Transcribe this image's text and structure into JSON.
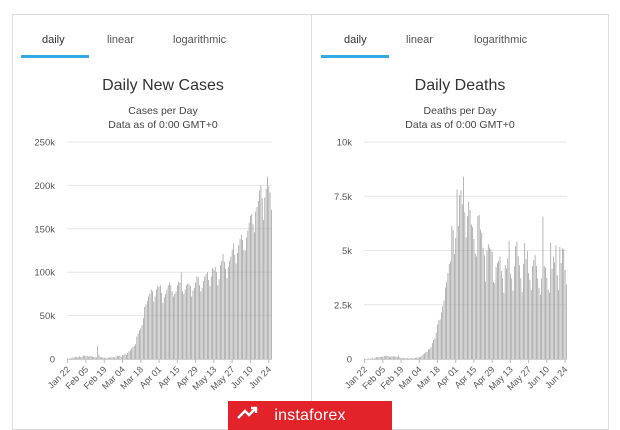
{
  "panels": [
    {
      "tabs": [
        {
          "label": "daily",
          "active": true
        },
        {
          "label": "linear",
          "active": false
        },
        {
          "label": "logarithmic",
          "active": false
        }
      ],
      "chart_data": {
        "type": "bar",
        "title": "Daily New Cases",
        "subtitle_lines": [
          "Cases per Day",
          "Data as of 0:00 GMT+0"
        ],
        "xlabel": "",
        "ylabel": "",
        "ylim": [
          0,
          250000
        ],
        "yticks": [
          0,
          50000,
          100000,
          150000,
          200000,
          250000
        ],
        "ytick_labels": [
          "0",
          "50k",
          "100k",
          "150k",
          "200k",
          "250k"
        ],
        "xtick_labels": [
          "Jan 22",
          "Feb 05",
          "Feb 19",
          "Mar 04",
          "Mar 18",
          "Apr 01",
          "Apr 15",
          "Apr 29",
          "May 13",
          "May 27",
          "Jun 10",
          "Jun 24"
        ],
        "start_date": "Jan 22",
        "grid": true,
        "color": "#9a9a9a",
        "values": [
          600,
          300,
          700,
          800,
          1800,
          1900,
          2100,
          2600,
          2200,
          3000,
          2000,
          2300,
          3900,
          3700,
          3200,
          3800,
          2700,
          3500,
          3100,
          2600,
          2400,
          2000,
          1800,
          15000,
          5100,
          2400,
          2000,
          1900,
          1500,
          1000,
          600,
          1800,
          1300,
          2400,
          1800,
          2300,
          1500,
          2700,
          3900,
          3300,
          3800,
          2300,
          4500,
          4400,
          5400,
          4600,
          7200,
          9000,
          10000,
          12000,
          14000,
          15000,
          17000,
          26000,
          29000,
          33000,
          35000,
          39000,
          47000,
          60000,
          63000,
          67000,
          72000,
          75000,
          80000,
          78000,
          66000,
          72000,
          80000,
          84000,
          83000,
          85000,
          76000,
          65000,
          71000,
          75000,
          80000,
          85000,
          88000,
          85000,
          78000,
          72000,
          75000,
          78000,
          85000,
          89000,
          88000,
          100000,
          78000,
          75000,
          80000,
          85000,
          87000,
          86000,
          84000,
          72000,
          79000,
          82000,
          88000,
          95000,
          94000,
          85000,
          78000,
          82000,
          90000,
          95000,
          98000,
          100000,
          91000,
          84000,
          95000,
          105000,
          103000,
          106000,
          100000,
          85000,
          92000,
          108000,
          113000,
          121000,
          112000,
          104000,
          93000,
          106000,
          113000,
          118000,
          126000,
          133000,
          120000,
          110000,
          122000,
          131000,
          138000,
          143000,
          137000,
          126000,
          125000,
          140000,
          148000,
          157000,
          165000,
          167000,
          155000,
          146000,
          170000,
          175000,
          182000,
          194000,
          200000,
          185000,
          160000,
          186000,
          196000,
          210000,
          199000,
          192000,
          172000
        ]
      }
    },
    {
      "tabs": [
        {
          "label": "daily",
          "active": true
        },
        {
          "label": "linear",
          "active": false
        },
        {
          "label": "logarithmic",
          "active": false
        }
      ],
      "chart_data": {
        "type": "bar",
        "title": "Daily Deaths",
        "subtitle_lines": [
          "Deaths per Day",
          "Data as of 0:00 GMT+0"
        ],
        "xlabel": "",
        "ylabel": "",
        "ylim": [
          0,
          10000
        ],
        "yticks": [
          0,
          2500,
          5000,
          7500,
          10000
        ],
        "ytick_labels": [
          "0",
          "2.5k",
          "5k",
          "7.5k",
          "10k"
        ],
        "xtick_labels": [
          "Jan 22",
          "Feb 05",
          "Feb 19",
          "Mar 04",
          "Mar 18",
          "Apr 01",
          "Apr 15",
          "Apr 29",
          "May 13",
          "May 27",
          "Jun 10",
          "Jun 24"
        ],
        "start_date": "Jan 22",
        "grid": true,
        "color": "#9a9a9a",
        "values": [
          17,
          1,
          8,
          16,
          14,
          26,
          49,
          2,
          66,
          73,
          86,
          89,
          97,
          108,
          97,
          146,
          121,
          143,
          142,
          105,
          98,
          136,
          116,
          118,
          109,
          97,
          150,
          71,
          52,
          29,
          44,
          47,
          35,
          42,
          31,
          38,
          31,
          30,
          41,
          53,
          56,
          79,
          84,
          102,
          162,
          215,
          261,
          316,
          341,
          445,
          452,
          543,
          732,
          873,
          946,
          1210,
          1595,
          1790,
          1820,
          2150,
          2430,
          2700,
          3290,
          3550,
          3960,
          4380,
          4500,
          6140,
          5940,
          4840,
          5570,
          7810,
          6130,
          7550,
          7770,
          7130,
          8400,
          6760,
          5610,
          6580,
          7250,
          6860,
          6200,
          6080,
          5530,
          4860,
          4730,
          6590,
          6640,
          5960,
          5810,
          5110,
          4770,
          3570,
          5010,
          5290,
          5140,
          5060,
          4940,
          3550,
          3490,
          4240,
          4430,
          4510,
          4720,
          4050,
          3710,
          3050,
          4320,
          4180,
          4640,
          5460,
          3930,
          3710,
          3150,
          4270,
          5200,
          5410,
          4730,
          4320,
          3720,
          3080,
          4380,
          5340,
          4610,
          4970,
          3960,
          3650,
          3170,
          4280,
          4550,
          4790,
          4290,
          3710,
          3280,
          2950,
          3710,
          6560,
          4290,
          4210,
          3740,
          3190,
          3060,
          5360,
          4160,
          4710,
          4450,
          5240,
          3860,
          3170,
          5160,
          4430,
          5100,
          5060,
          4110,
          3440
        ]
      }
    }
  ],
  "brand": {
    "name": "instaforex",
    "color": "#e3232a"
  }
}
